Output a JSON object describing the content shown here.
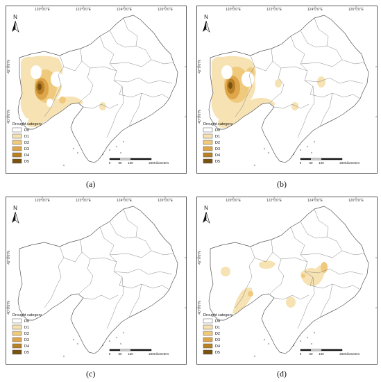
{
  "figure": {
    "panels": [
      {
        "id": "a",
        "caption": "(a)",
        "lon_labels": [
          "120°0'0\"E",
          "122°0'0\"E",
          "124°0'0\"E",
          "126°0'0\"E"
        ],
        "lat_labels": [
          "42°0'0\"N",
          "40°0'0\"N"
        ],
        "legend_title": "Drought category",
        "legend_items": [
          {
            "label": "D0",
            "color": "#ffffff"
          },
          {
            "label": "D1",
            "color": "#f6e2b2"
          },
          {
            "label": "D2",
            "color": "#efc97c"
          },
          {
            "label": "D3",
            "color": "#dea54a"
          },
          {
            "label": "D4",
            "color": "#b98026"
          },
          {
            "label": "D5",
            "color": "#7a520f"
          }
        ],
        "scale_ticks": [
          "0",
          "50",
          "100",
          "200"
        ],
        "scale_unit": "Kilometers",
        "north": "N"
      },
      {
        "id": "b",
        "caption": "(b)",
        "lon_labels": [
          "120°0'0\"E",
          "122°0'0\"E",
          "124°0'0\"E",
          "126°0'0\"E"
        ],
        "lat_labels": [
          "42°0'0\"N",
          "40°0'0\"N"
        ],
        "legend_title": "Drought category",
        "legend_items": [
          {
            "label": "D0",
            "color": "#ffffff"
          },
          {
            "label": "D1",
            "color": "#f6e2b2"
          },
          {
            "label": "D2",
            "color": "#efc97c"
          },
          {
            "label": "D3",
            "color": "#dea54a"
          },
          {
            "label": "D4",
            "color": "#b98026"
          },
          {
            "label": "D5",
            "color": "#7a520f"
          }
        ],
        "scale_ticks": [
          "0",
          "50",
          "100",
          "200"
        ],
        "scale_unit": "Kilometers",
        "north": "N"
      },
      {
        "id": "c",
        "caption": "(c)",
        "lon_labels": [
          "120°0'0\"E",
          "122°0'0\"E",
          "124°0'0\"E",
          "126°0'0\"E"
        ],
        "lat_labels": [
          "42°0'0\"N",
          "40°0'0\"N"
        ],
        "legend_title": "Drought category",
        "legend_items": [
          {
            "label": "D0",
            "color": "#ffffff"
          },
          {
            "label": "D1",
            "color": "#f6e2b2"
          },
          {
            "label": "D2",
            "color": "#efc97c"
          },
          {
            "label": "D3",
            "color": "#dea54a"
          },
          {
            "label": "D4",
            "color": "#b98026"
          },
          {
            "label": "D5",
            "color": "#7a520f"
          }
        ],
        "scale_ticks": [
          "0",
          "50",
          "100",
          "200"
        ],
        "scale_unit": "Kilometers",
        "north": "N"
      },
      {
        "id": "d",
        "caption": "(d)",
        "lon_labels": [
          "120°0'0\"E",
          "122°0'0\"E",
          "124°0'0\"E",
          "126°0'0\"E"
        ],
        "lat_labels": [
          "42°0'0\"N",
          "40°0'0\"N"
        ],
        "legend_title": "Drought category",
        "legend_items": [
          {
            "label": "D0",
            "color": "#ffffff"
          },
          {
            "label": "D1",
            "color": "#f6e2b2"
          },
          {
            "label": "D2",
            "color": "#efc97c"
          },
          {
            "label": "D3",
            "color": "#dea54a"
          },
          {
            "label": "D4",
            "color": "#b98026"
          },
          {
            "label": "D5",
            "color": "#7a520f"
          }
        ],
        "scale_ticks": [
          "0",
          "50",
          "100",
          "200"
        ],
        "scale_unit": "Kilometers",
        "north": "N"
      }
    ]
  }
}
